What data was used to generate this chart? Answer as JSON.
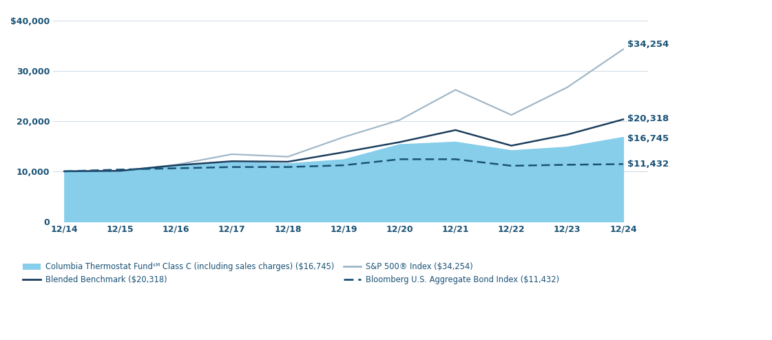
{
  "x_labels": [
    "12/14",
    "12/15",
    "12/16",
    "12/17",
    "12/18",
    "12/19",
    "12/20",
    "12/21",
    "12/22",
    "12/23",
    "12/24"
  ],
  "columbia": [
    10000,
    10050,
    11000,
    11800,
    11500,
    12300,
    15300,
    15800,
    14100,
    14800,
    16745
  ],
  "blended": [
    10000,
    10100,
    11200,
    12000,
    11900,
    13800,
    15800,
    18200,
    15100,
    17300,
    20318
  ],
  "sp500": [
    10000,
    10100,
    11300,
    13400,
    12900,
    16800,
    20200,
    26200,
    21200,
    26700,
    34254
  ],
  "bloomberg": [
    10000,
    10350,
    10600,
    10850,
    10850,
    11200,
    12400,
    12400,
    11100,
    11300,
    11432
  ],
  "columbia_color": "#87CEEB",
  "blended_color": "#1c3f5e",
  "sp500_color": "#a0b8c8",
  "bloomberg_color": "#1a5276",
  "background_color": "#ffffff",
  "grid_color": "#cdd9e5",
  "label_color": "#1a5276",
  "ylim": [
    0,
    42000
  ],
  "yticks": [
    0,
    10000,
    20000,
    30000,
    40000
  ],
  "ytick_labels": [
    "0",
    "10,000",
    "20,000",
    "30,000",
    "$40,000"
  ],
  "end_labels": {
    "sp500": "$34,254",
    "blended": "$20,318",
    "columbia": "$16,745",
    "bloomberg": "$11,432"
  },
  "end_label_offsets": {
    "sp500": 1200,
    "blended": 0,
    "columbia": 0,
    "bloomberg": 0
  },
  "legend_labels": [
    "Columbia Thermostat Fundˢᴹ Class C (including sales charges) ($16,745)",
    "Blended Benchmark ($20,318)",
    "S&P 500® Index ($34,254)",
    "Bloomberg U.S. Aggregate Bond Index ($11,432)"
  ],
  "figsize": [
    11.21,
    4.94
  ],
  "dpi": 100
}
